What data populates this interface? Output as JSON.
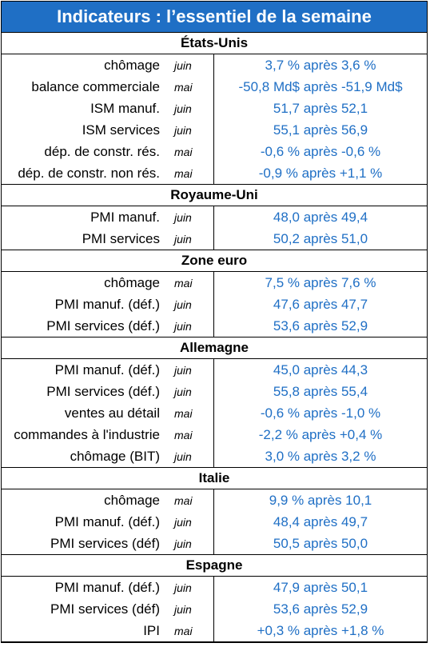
{
  "title": "Indicateurs : l’essentiel de la semaine",
  "sections": [
    {
      "name": "États-Unis",
      "rows": [
        {
          "label": "chômage",
          "period": "juin",
          "value": "3,7 % après 3,6 %"
        },
        {
          "label": "balance commerciale",
          "period": "mai",
          "value": "-50,8 Md$ après -51,9 Md$"
        },
        {
          "label": "ISM manuf.",
          "period": "juin",
          "value": "51,7 après 52,1"
        },
        {
          "label": "ISM services",
          "period": "juin",
          "value": "55,1 après 56,9"
        },
        {
          "label": "dép. de constr. rés.",
          "period": "mai",
          "value": "-0,6 % après -0,6 %"
        },
        {
          "label": "dép. de constr. non rés.",
          "period": "mai",
          "value": "-0,9 % après +1,1 %"
        }
      ]
    },
    {
      "name": "Royaume-Uni",
      "rows": [
        {
          "label": "PMI manuf.",
          "period": "juin",
          "value": "48,0 après 49,4"
        },
        {
          "label": "PMI services",
          "period": "juin",
          "value": "50,2 après 51,0"
        }
      ]
    },
    {
      "name": "Zone euro",
      "rows": [
        {
          "label": "chômage",
          "period": "mai",
          "value": "7,5 % après 7,6 %"
        },
        {
          "label": "PMI manuf. (déf.)",
          "period": "juin",
          "value": "47,6 après 47,7"
        },
        {
          "label": "PMI services (déf.)",
          "period": "juin",
          "value": "53,6 après 52,9"
        }
      ]
    },
    {
      "name": "Allemagne",
      "rows": [
        {
          "label": "PMI manuf. (déf.)",
          "period": "juin",
          "value": "45,0 après 44,3"
        },
        {
          "label": "PMI services (déf.)",
          "period": "juin",
          "value": "55,8 après 55,4"
        },
        {
          "label": "ventes au détail",
          "period": "mai",
          "value": "-0,6 % après -1,0 %"
        },
        {
          "label": "commandes à l'industrie",
          "period": "mai",
          "value": "-2,2 % après +0,4 %"
        },
        {
          "label": "chômage (BIT)",
          "period": "juin",
          "value": "3,0 % après 3,2 %"
        }
      ]
    },
    {
      "name": "Italie",
      "rows": [
        {
          "label": "chômage",
          "period": "mai",
          "value": "9,9 % après 10,1"
        },
        {
          "label": "PMI manuf. (déf.)",
          "period": "juin",
          "value": "48,4 après 49,7"
        },
        {
          "label": "PMI services (déf)",
          "period": "juin",
          "value": "50,5 après 50,0"
        }
      ]
    },
    {
      "name": "Espagne",
      "rows": [
        {
          "label": "PMI manuf. (déf.)",
          "period": "juin",
          "value": "47,9 après 50,1"
        },
        {
          "label": "PMI services (déf)",
          "period": "juin",
          "value": "53,6 après 52,9"
        },
        {
          "label": "IPI",
          "period": "mai",
          "value": "+0,3 % après +1,8 %"
        }
      ]
    }
  ],
  "colors": {
    "accent": "#1f6fc5",
    "title_text": "#ffffff",
    "value_text": "#1f6fc5"
  }
}
